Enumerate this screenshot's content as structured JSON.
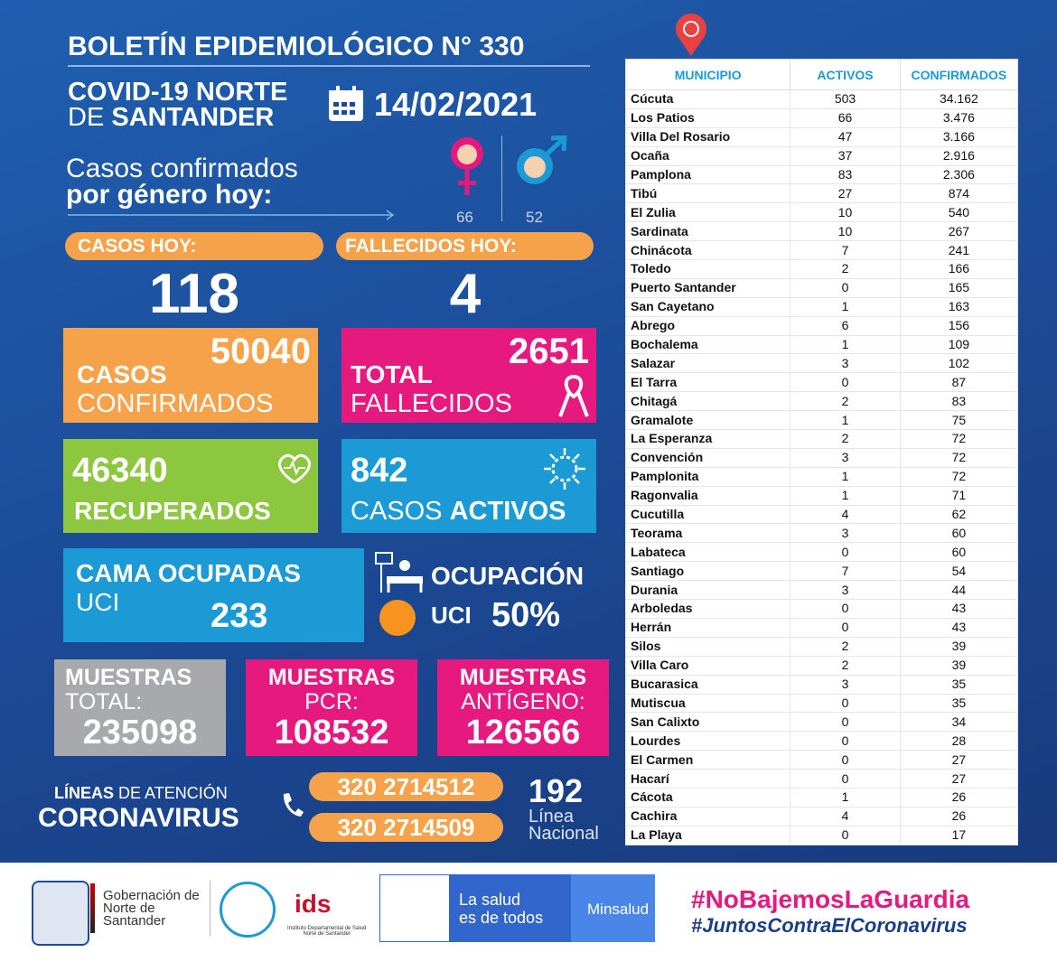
{
  "header": {
    "title": "BOLETÍN EPIDEMIOLÓGICO N° 330",
    "region_line1": "COVID-19 NORTE",
    "region_line2_a": "DE",
    "region_line2_b": "SANTANDER",
    "date": "14/02/2021"
  },
  "gender": {
    "label_line1": "Casos confirmados",
    "label_line2": "por género hoy:",
    "female": 66,
    "male": 52
  },
  "cases_today": {
    "label": "CASOS HOY:",
    "value": 118
  },
  "deaths_today": {
    "label": "FALLECIDOS HOY:",
    "value": 4
  },
  "confirmed": {
    "value": 50040,
    "line1": "CASOS",
    "line2": "CONFIRMADOS"
  },
  "total_deaths": {
    "value": 2651,
    "line1": "TOTAL",
    "line2": "FALLECIDOS"
  },
  "recovered": {
    "value": 46340,
    "label": "RECUPERADOS"
  },
  "active": {
    "value": 842,
    "label_a": "CASOS",
    "label_b": "ACTIVOS"
  },
  "icu_beds": {
    "line1": "CAMA OCUPADAS",
    "line2": "UCI",
    "value": 233
  },
  "icu_occupancy": {
    "line1": "OCUPACIÓN",
    "line2": "UCI",
    "value": "50%"
  },
  "samples": [
    {
      "title": "MUESTRAS",
      "sub": "TOTAL:",
      "value": 235098
    },
    {
      "title": "MUESTRAS",
      "sub": "PCR:",
      "value": 108532
    },
    {
      "title": "MUESTRAS",
      "sub": "ANTÍGENO:",
      "value": 126566
    }
  ],
  "hotlines": {
    "line1_a": "LÍNEAS",
    "line1_b": "DE ATENCIÓN",
    "line2": "CORONAVIRUS",
    "phones": [
      "320 2714512",
      "320 2714509"
    ],
    "national_number": "192",
    "national_line1": "Línea",
    "national_line2": "Nacional"
  },
  "table": {
    "headers": [
      "MUNICIPIO",
      "ACTIVOS",
      "CONFIRMADOS"
    ],
    "rows": [
      [
        "Cúcuta",
        503,
        "34.162"
      ],
      [
        "Los Patios",
        66,
        "3.476"
      ],
      [
        "Villa Del Rosario",
        47,
        "3.166"
      ],
      [
        "Ocaña",
        37,
        "2.916"
      ],
      [
        "Pamplona",
        83,
        "2.306"
      ],
      [
        "Tibú",
        27,
        874
      ],
      [
        "El Zulia",
        10,
        540
      ],
      [
        "Sardinata",
        10,
        267
      ],
      [
        "Chinácota",
        7,
        241
      ],
      [
        "Toledo",
        2,
        166
      ],
      [
        "Puerto Santander",
        0,
        165
      ],
      [
        "San Cayetano",
        1,
        163
      ],
      [
        "Abrego",
        6,
        156
      ],
      [
        "Bochalema",
        1,
        109
      ],
      [
        "Salazar",
        3,
        102
      ],
      [
        "El Tarra",
        0,
        87
      ],
      [
        "Chitagá",
        2,
        83
      ],
      [
        "Gramalote",
        1,
        75
      ],
      [
        "La Esperanza",
        2,
        72
      ],
      [
        "Convención",
        3,
        72
      ],
      [
        "Pamplonita",
        1,
        72
      ],
      [
        "Ragonvalia",
        1,
        71
      ],
      [
        "Cucutilla",
        4,
        62
      ],
      [
        "Teorama",
        3,
        60
      ],
      [
        "Labateca",
        0,
        60
      ],
      [
        "Santiago",
        7,
        54
      ],
      [
        "Durania",
        3,
        44
      ],
      [
        "Arboledas",
        0,
        43
      ],
      [
        "Herrán",
        0,
        43
      ],
      [
        "Silos",
        2,
        39
      ],
      [
        "Villa Caro",
        2,
        39
      ],
      [
        "Bucarasica",
        3,
        35
      ],
      [
        "Mutiscua",
        0,
        35
      ],
      [
        "San Calixto",
        0,
        34
      ],
      [
        "Lourdes",
        0,
        28
      ],
      [
        "El Carmen",
        0,
        27
      ],
      [
        "Hacarí",
        0,
        27
      ],
      [
        "Cácota",
        1,
        26
      ],
      [
        "Cachira",
        4,
        26
      ],
      [
        "La Playa",
        0,
        17
      ]
    ]
  },
  "footer": {
    "gov_line1": "Gobernación de",
    "gov_line2": "Norte de",
    "gov_line3": "Santander",
    "ids": "Instituto Departamental de Salud",
    "ids_sub": "Norte de Santander",
    "salud_line1": "La salud",
    "salud_line2": "es de todos",
    "minsalud": "Minsalud",
    "hashtag1": "#NoBajemosLaGuardia",
    "hashtag2": "#JuntosContraElCoronavirus"
  }
}
